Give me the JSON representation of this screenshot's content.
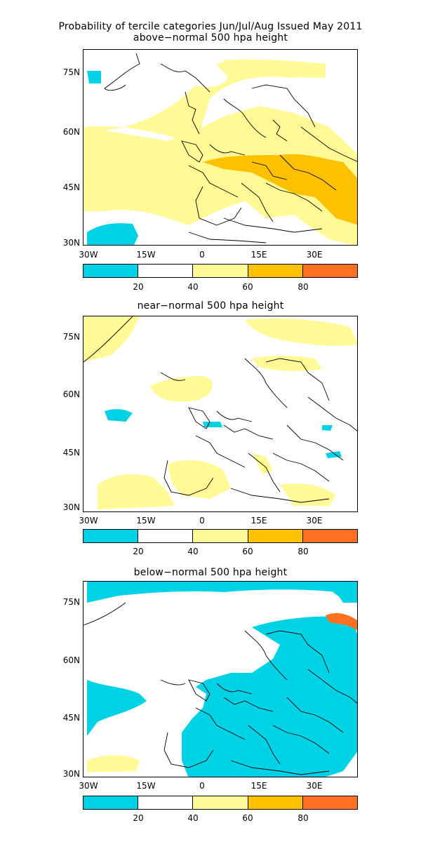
{
  "title_line1": "Probability of tercile categories Jun/Jul/Aug Issued May 2011",
  "colors": {
    "cyan": "#00d2e6",
    "white": "#ffffff",
    "light_yellow": "#fffa96",
    "amber": "#ffc000",
    "orange": "#ff7020"
  },
  "lat_labels": [
    "75N",
    "60N",
    "45N",
    "30N"
  ],
  "lon_labels": [
    "30W",
    "15W",
    "0",
    "15E",
    "30E"
  ],
  "colorbar_labels": [
    "20",
    "40",
    "60",
    "80"
  ],
  "panels": [
    {
      "title": "above−normal 500 hpa height",
      "id": "above"
    },
    {
      "title": "near−normal 500 hpa height",
      "id": "near"
    },
    {
      "title": "below−normal 500 hpa height",
      "id": "below"
    }
  ]
}
